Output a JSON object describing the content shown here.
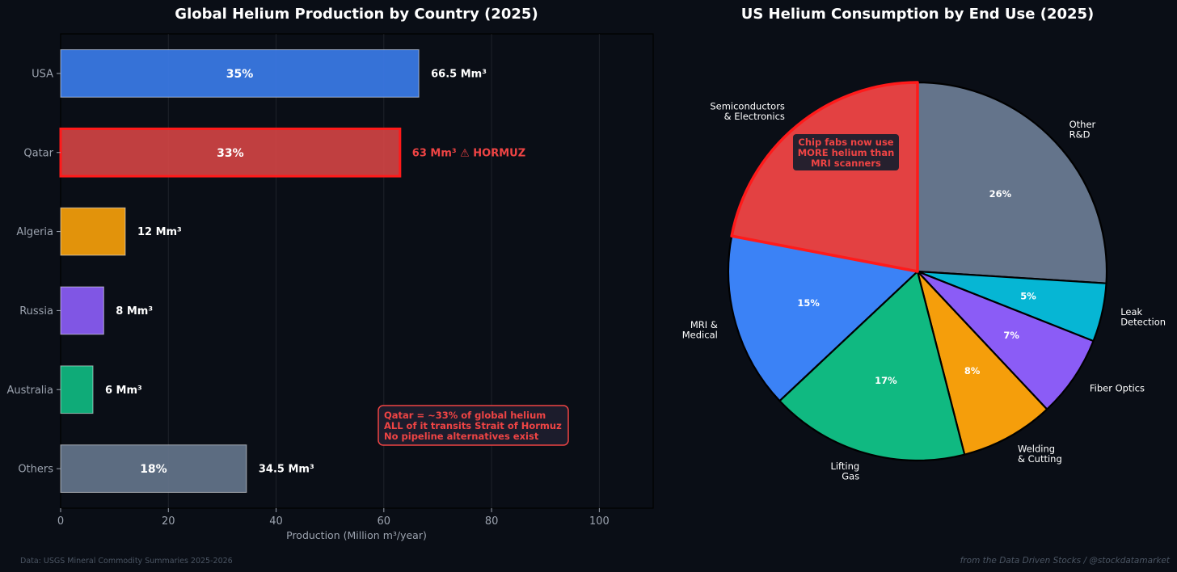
{
  "chart_data": [
    {
      "type": "bar",
      "orientation": "horizontal",
      "title": "Global Helium Production by Country (2025)",
      "xlabel": "Production (Million m³/year)",
      "ylabel": "",
      "xlim": [
        0,
        110
      ],
      "xticks": [
        0,
        20,
        40,
        60,
        80,
        100
      ],
      "grid": true,
      "categories": [
        "USA",
        "Qatar",
        "Algeria",
        "Russia",
        "Australia",
        "Others"
      ],
      "values": [
        66.5,
        63,
        12,
        8,
        6,
        34.5
      ],
      "value_labels": [
        "66.5 Mm³",
        "63 Mm³  ⚠ HORMUZ",
        "12 Mm³",
        "8 Mm³",
        "6 Mm³",
        "34.5 Mm³"
      ],
      "share_labels": [
        "35%",
        "33%",
        "",
        "",
        "",
        "18%"
      ],
      "colors": [
        "#3b7be8",
        "#e04848",
        "#f59e0b",
        "#8b5cf6",
        "#10b981",
        "#64748b"
      ],
      "highlight": "Qatar",
      "highlight_color": "#ef4444",
      "annotation": [
        "Qatar = ~33% of global helium",
        "ALL of it transits Strait of Hormuz",
        "No pipeline alternatives exist"
      ]
    },
    {
      "type": "pie",
      "title": "US Helium Consumption by End Use (2025)",
      "start_angle_deg": 90,
      "direction": "clockwise",
      "slices": [
        {
          "label": "Other\nR&D",
          "value": 26,
          "pct_label": "26%",
          "color": "#64748b"
        },
        {
          "label": "Leak\nDetection",
          "value": 5,
          "pct_label": "5%",
          "color": "#06b6d4"
        },
        {
          "label": "Fiber Optics",
          "value": 7,
          "pct_label": "7%",
          "color": "#8b5cf6"
        },
        {
          "label": "Welding\n& Cutting",
          "value": 8,
          "pct_label": "8%",
          "color": "#f59e0b"
        },
        {
          "label": "Lifting\nGas",
          "value": 17,
          "pct_label": "17%",
          "color": "#10b981"
        },
        {
          "label": "MRI &\nMedical",
          "value": 15,
          "pct_label": "15%",
          "color": "#3b82f6"
        },
        {
          "label": "Semiconductors\n& Electronics",
          "value": 22,
          "pct_label": "",
          "color": "#ef4444"
        }
      ],
      "highlight": "Semiconductors\n& Electronics",
      "annotation": [
        "Chip fabs now use",
        "MORE helium than",
        "MRI scanners"
      ]
    }
  ],
  "footer": {
    "source": "Data: USGS Mineral Commodity Summaries 2025-2026",
    "credit": "from the Data Driven Stocks / @stockdatamarket"
  }
}
